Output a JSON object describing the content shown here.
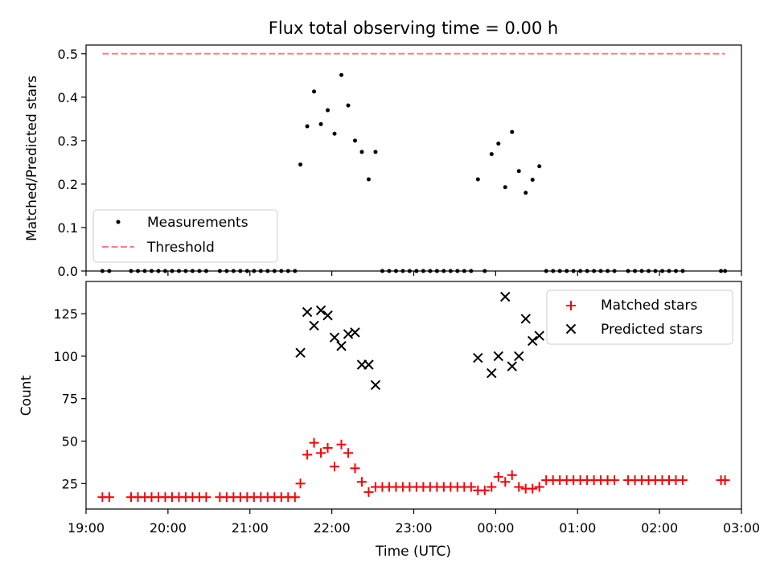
{
  "chart_data": [
    {
      "type": "scatter",
      "title": "Flux total observing time = 0.00 h",
      "xlabel": "",
      "ylabel": "Matched/Predicted stars",
      "xlim": [
        "19:00",
        "03:00"
      ],
      "ylim": [
        0,
        0.52
      ],
      "yticks": [
        0.0,
        0.1,
        0.2,
        0.3,
        0.4,
        0.5
      ],
      "ytick_labels": [
        "0.0",
        "0.1",
        "0.2",
        "0.3",
        "0.4",
        "0.5"
      ],
      "legend": {
        "position": "lower-left",
        "entries": [
          "Measurements",
          "Threshold"
        ]
      },
      "threshold": {
        "name": "Threshold",
        "y": 0.5,
        "x_start": "19:12",
        "x_end": "02:48",
        "color": "#ff7f7f"
      },
      "series": [
        {
          "name": "Measurements",
          "color": "#000000",
          "points": [
            [
              "19:12",
              0
            ],
            [
              "19:17",
              0
            ],
            [
              "19:33",
              0
            ],
            [
              "19:38",
              0
            ],
            [
              "19:43",
              0
            ],
            [
              "19:48",
              0
            ],
            [
              "19:53",
              0
            ],
            [
              "19:58",
              0
            ],
            [
              "20:03",
              0
            ],
            [
              "20:08",
              0
            ],
            [
              "20:13",
              0
            ],
            [
              "20:18",
              0
            ],
            [
              "20:23",
              0
            ],
            [
              "20:28",
              0
            ],
            [
              "20:38",
              0
            ],
            [
              "20:43",
              0
            ],
            [
              "20:48",
              0
            ],
            [
              "20:53",
              0
            ],
            [
              "20:58",
              0
            ],
            [
              "21:03",
              0
            ],
            [
              "21:08",
              0
            ],
            [
              "21:13",
              0
            ],
            [
              "21:18",
              0
            ],
            [
              "21:23",
              0
            ],
            [
              "21:28",
              0
            ],
            [
              "21:33",
              0
            ],
            [
              "21:37",
              0.245
            ],
            [
              "21:42",
              0.333
            ],
            [
              "21:47",
              0.413
            ],
            [
              "21:52",
              0.338
            ],
            [
              "21:57",
              0.37
            ],
            [
              "22:02",
              0.316
            ],
            [
              "22:07",
              0.451
            ],
            [
              "22:12",
              0.381
            ],
            [
              "22:17",
              0.3
            ],
            [
              "22:22",
              0.274
            ],
            [
              "22:27",
              0.211
            ],
            [
              "22:32",
              0.274
            ],
            [
              "22:37",
              0
            ],
            [
              "22:42",
              0
            ],
            [
              "22:47",
              0
            ],
            [
              "22:52",
              0
            ],
            [
              "22:57",
              0
            ],
            [
              "23:02",
              0
            ],
            [
              "23:07",
              0
            ],
            [
              "23:12",
              0
            ],
            [
              "23:17",
              0
            ],
            [
              "23:22",
              0
            ],
            [
              "23:27",
              0
            ],
            [
              "23:32",
              0
            ],
            [
              "23:37",
              0
            ],
            [
              "23:42",
              0
            ],
            [
              "23:47",
              0.211
            ],
            [
              "23:52",
              0
            ],
            [
              "23:57",
              0.269
            ],
            [
              "00:02",
              0.293
            ],
            [
              "00:07",
              0.193
            ],
            [
              "00:12",
              0.32
            ],
            [
              "00:17",
              0.23
            ],
            [
              "00:22",
              0.18
            ],
            [
              "00:27",
              0.21
            ],
            [
              "00:32",
              0.241
            ],
            [
              "00:37",
              0
            ],
            [
              "00:42",
              0
            ],
            [
              "00:47",
              0
            ],
            [
              "00:52",
              0
            ],
            [
              "00:57",
              0
            ],
            [
              "01:02",
              0
            ],
            [
              "01:07",
              0
            ],
            [
              "01:12",
              0
            ],
            [
              "01:17",
              0
            ],
            [
              "01:22",
              0
            ],
            [
              "01:27",
              0
            ],
            [
              "01:37",
              0
            ],
            [
              "01:42",
              0
            ],
            [
              "01:47",
              0
            ],
            [
              "01:52",
              0
            ],
            [
              "01:57",
              0
            ],
            [
              "02:02",
              0
            ],
            [
              "02:07",
              0
            ],
            [
              "02:12",
              0
            ],
            [
              "02:17",
              0
            ],
            [
              "02:45",
              0
            ],
            [
              "02:48",
              0
            ]
          ]
        }
      ]
    },
    {
      "type": "scatter",
      "title": "",
      "xlabel": "Time (UTC)",
      "ylabel": "Count",
      "xlim": [
        "19:00",
        "03:00"
      ],
      "ylim": [
        10,
        144
      ],
      "xticks": [
        "19:00",
        "20:00",
        "21:00",
        "22:00",
        "23:00",
        "00:00",
        "01:00",
        "02:00",
        "03:00"
      ],
      "yticks": [
        25,
        50,
        75,
        100,
        125
      ],
      "ytick_labels": [
        "25",
        "50",
        "75",
        "100",
        "125"
      ],
      "legend": {
        "position": "upper-right",
        "entries": [
          "Matched stars",
          "Predicted stars"
        ]
      },
      "series": [
        {
          "name": "Matched stars",
          "marker": "plus",
          "color": "#ff0000",
          "points": [
            [
              "19:12",
              17
            ],
            [
              "19:17",
              17
            ],
            [
              "19:33",
              17
            ],
            [
              "19:38",
              17
            ],
            [
              "19:43",
              17
            ],
            [
              "19:48",
              17
            ],
            [
              "19:53",
              17
            ],
            [
              "19:58",
              17
            ],
            [
              "20:03",
              17
            ],
            [
              "20:08",
              17
            ],
            [
              "20:13",
              17
            ],
            [
              "20:18",
              17
            ],
            [
              "20:23",
              17
            ],
            [
              "20:28",
              17
            ],
            [
              "20:38",
              17
            ],
            [
              "20:43",
              17
            ],
            [
              "20:48",
              17
            ],
            [
              "20:53",
              17
            ],
            [
              "20:58",
              17
            ],
            [
              "21:03",
              17
            ],
            [
              "21:08",
              17
            ],
            [
              "21:13",
              17
            ],
            [
              "21:18",
              17
            ],
            [
              "21:23",
              17
            ],
            [
              "21:28",
              17
            ],
            [
              "21:33",
              17
            ],
            [
              "21:37",
              25
            ],
            [
              "21:42",
              42
            ],
            [
              "21:47",
              49
            ],
            [
              "21:52",
              43
            ],
            [
              "21:57",
              46
            ],
            [
              "22:02",
              35
            ],
            [
              "22:07",
              48
            ],
            [
              "22:12",
              43
            ],
            [
              "22:17",
              34
            ],
            [
              "22:22",
              26
            ],
            [
              "22:27",
              20
            ],
            [
              "22:32",
              23
            ],
            [
              "22:37",
              23
            ],
            [
              "22:42",
              23
            ],
            [
              "22:47",
              23
            ],
            [
              "22:52",
              23
            ],
            [
              "22:57",
              23
            ],
            [
              "23:02",
              23
            ],
            [
              "23:07",
              23
            ],
            [
              "23:12",
              23
            ],
            [
              "23:17",
              23
            ],
            [
              "23:22",
              23
            ],
            [
              "23:27",
              23
            ],
            [
              "23:32",
              23
            ],
            [
              "23:37",
              23
            ],
            [
              "23:42",
              23
            ],
            [
              "23:47",
              21
            ],
            [
              "23:52",
              21
            ],
            [
              "23:57",
              23
            ],
            [
              "00:02",
              29
            ],
            [
              "00:07",
              26
            ],
            [
              "00:12",
              30
            ],
            [
              "00:17",
              23
            ],
            [
              "00:22",
              22
            ],
            [
              "00:27",
              22
            ],
            [
              "00:32",
              23
            ],
            [
              "00:37",
              27
            ],
            [
              "00:42",
              27
            ],
            [
              "00:47",
              27
            ],
            [
              "00:52",
              27
            ],
            [
              "00:57",
              27
            ],
            [
              "01:02",
              27
            ],
            [
              "01:07",
              27
            ],
            [
              "01:12",
              27
            ],
            [
              "01:17",
              27
            ],
            [
              "01:22",
              27
            ],
            [
              "01:27",
              27
            ],
            [
              "01:37",
              27
            ],
            [
              "01:42",
              27
            ],
            [
              "01:47",
              27
            ],
            [
              "01:52",
              27
            ],
            [
              "01:57",
              27
            ],
            [
              "02:02",
              27
            ],
            [
              "02:07",
              27
            ],
            [
              "02:12",
              27
            ],
            [
              "02:17",
              27
            ],
            [
              "02:45",
              27
            ],
            [
              "02:48",
              27
            ]
          ]
        },
        {
          "name": "Predicted stars",
          "marker": "x",
          "color": "#000000",
          "points": [
            [
              "21:37",
              102
            ],
            [
              "21:42",
              126
            ],
            [
              "21:47",
              118
            ],
            [
              "21:52",
              127
            ],
            [
              "21:57",
              124
            ],
            [
              "22:02",
              111
            ],
            [
              "22:07",
              106
            ],
            [
              "22:12",
              113
            ],
            [
              "22:17",
              114
            ],
            [
              "22:22",
              95
            ],
            [
              "22:27",
              95
            ],
            [
              "22:32",
              83
            ],
            [
              "23:47",
              99
            ],
            [
              "23:57",
              90
            ],
            [
              "00:02",
              100
            ],
            [
              "00:07",
              135
            ],
            [
              "00:12",
              94
            ],
            [
              "00:17",
              100
            ],
            [
              "00:22",
              122
            ],
            [
              "00:27",
              109
            ],
            [
              "00:32",
              112
            ]
          ]
        }
      ]
    }
  ]
}
